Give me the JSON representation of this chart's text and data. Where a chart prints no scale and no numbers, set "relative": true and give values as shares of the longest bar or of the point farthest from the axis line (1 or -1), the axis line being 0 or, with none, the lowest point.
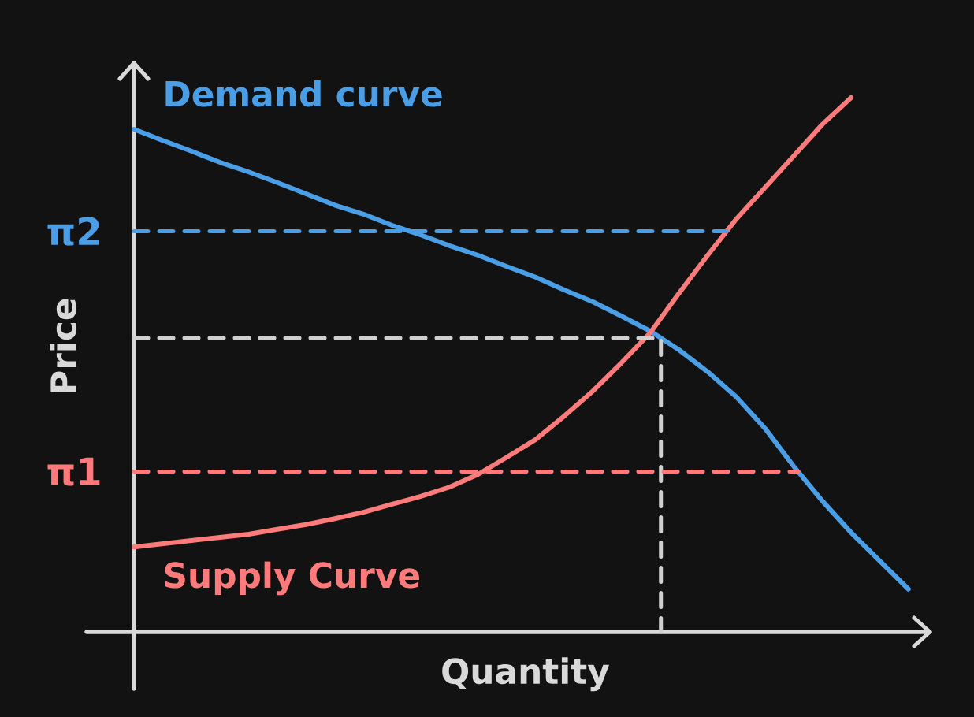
{
  "chart_data": {
    "type": "line",
    "relative": true,
    "xlabel": "Quantity",
    "ylabel": "Price",
    "categories": [
      null,
      null,
      null,
      null,
      null,
      null,
      null,
      null,
      null,
      null,
      null,
      null,
      null,
      null,
      null,
      null,
      null,
      null,
      null,
      null,
      null,
      null,
      null,
      null,
      null,
      null,
      null,
      null
    ],
    "series": [
      {
        "name": "Demand curve",
        "color": "#4a9ee6",
        "values": [
          0.941,
          0.92,
          0.9,
          0.879,
          0.861,
          0.841,
          0.82,
          0.799,
          0.782,
          0.761,
          0.743,
          0.723,
          0.705,
          0.684,
          0.664,
          0.64,
          0.618,
          0.591,
          0.563,
          0.528,
          0.487,
          0.44,
          0.381,
          0.31,
          0.245,
          0.186,
          0.133,
          0.08
        ]
      },
      {
        "name": "Supply Curve",
        "color": "#ff7b7b",
        "values": [
          0.159,
          0.165,
          0.171,
          0.177,
          0.183,
          0.192,
          0.201,
          0.212,
          0.224,
          0.239,
          0.254,
          0.271,
          0.295,
          0.327,
          0.36,
          0.404,
          0.451,
          0.504,
          0.56,
          0.634,
          0.705,
          0.773,
          0.832,
          0.891,
          0.95,
          1,
          null,
          null
        ]
      }
    ],
    "ref_lines": [
      {
        "axis": "y",
        "value": 0.75,
        "label": "π2",
        "color": "#4a9ee6",
        "line_style": "dashed"
      },
      {
        "axis": "y",
        "value": 0.55,
        "color": "#d0d0d0",
        "line_style": "dashed"
      },
      {
        "axis": "y",
        "value": 0.3,
        "label": "π1",
        "color": "#ff7b7b",
        "line_style": "dashed"
      }
    ]
  }
}
